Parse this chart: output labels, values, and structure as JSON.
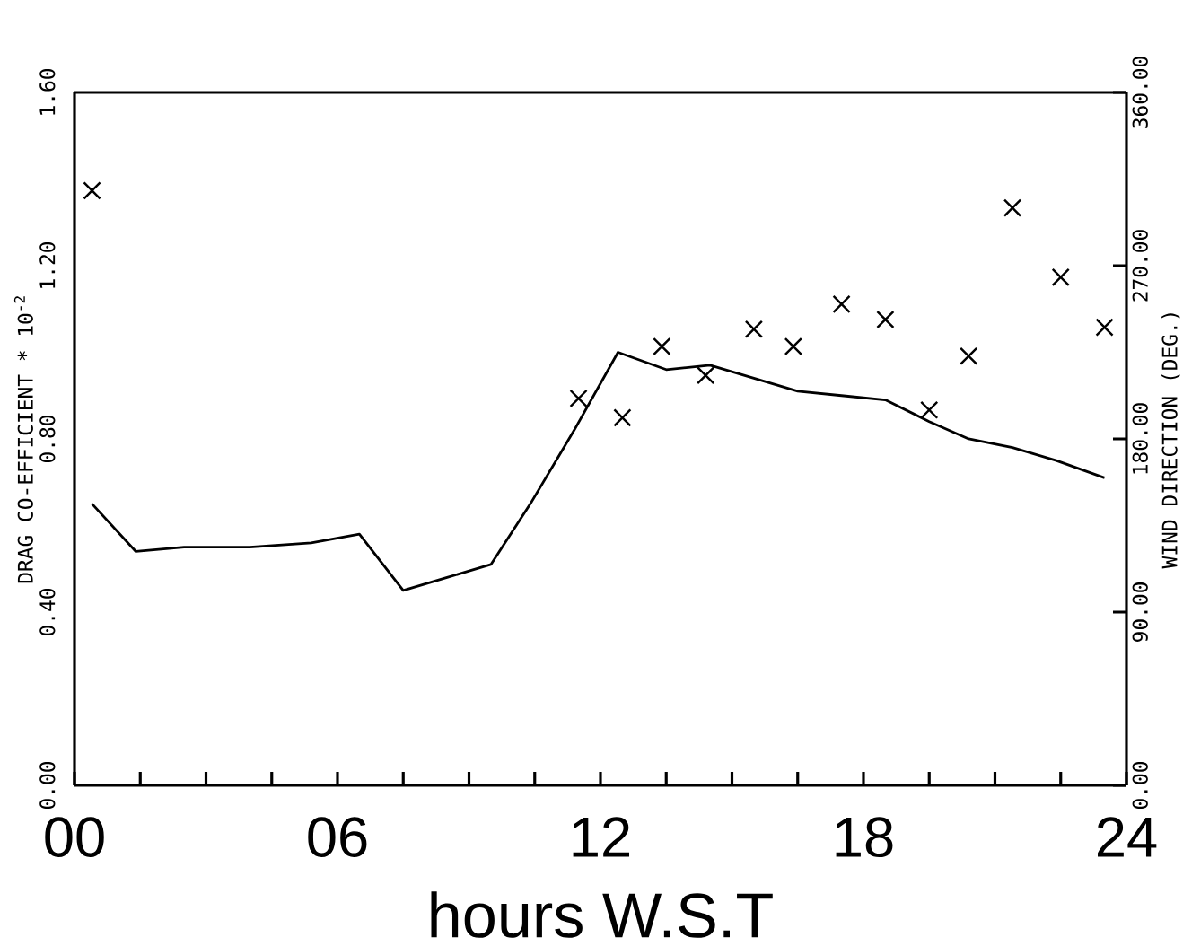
{
  "chart_data": {
    "type": "line",
    "xlabel": "hours W.S.T",
    "ylabel": "DRAG CO-EFFICIENT * 10$^{-2}$",
    "y2label": "WIND DIRECTION (DEG.)",
    "xlim": [
      0,
      24
    ],
    "xticks": [
      {
        "value": 0,
        "label": "00"
      },
      {
        "value": 1.5,
        "label": null
      },
      {
        "value": 3,
        "label": null
      },
      {
        "value": 4.5,
        "label": null
      },
      {
        "value": 6,
        "label": "06"
      },
      {
        "value": 7.5,
        "label": null
      },
      {
        "value": 9,
        "label": null
      },
      {
        "value": 10.5,
        "label": null
      },
      {
        "value": 12,
        "label": "12"
      },
      {
        "value": 13.5,
        "label": null
      },
      {
        "value": 15,
        "label": null
      },
      {
        "value": 16.5,
        "label": null
      },
      {
        "value": 18,
        "label": "18"
      },
      {
        "value": 19.5,
        "label": null
      },
      {
        "value": 21,
        "label": null
      },
      {
        "value": 22.5,
        "label": null
      },
      {
        "value": 24,
        "label": "24"
      }
    ],
    "ylim": [
      0,
      1.6
    ],
    "yticks": [
      {
        "value": 0,
        "label": "0.00"
      },
      {
        "value": 0.4,
        "label": "0.40"
      },
      {
        "value": 0.8,
        "label": "0.80"
      },
      {
        "value": 1.2,
        "label": "1.20"
      },
      {
        "value": 1.6,
        "label": "1.60"
      }
    ],
    "y2lim": [
      0,
      360
    ],
    "y2ticks": [
      {
        "value": 0,
        "label": "0.00"
      },
      {
        "value": 90,
        "label": "90.00"
      },
      {
        "value": 180,
        "label": "180.00"
      },
      {
        "value": 270,
        "label": "270.00"
      },
      {
        "value": 360,
        "label": "360.00"
      }
    ],
    "grid": false,
    "series": [
      {
        "type": "line",
        "color": "#000000",
        "marker": "none",
        "line_style": "solid",
        "x": [
          0.4,
          1.4,
          2.5,
          4.0,
          5.4,
          6.5,
          7.5,
          8.5,
          9.5,
          10.4,
          11.4,
          12.4,
          13.5,
          14.5,
          15.5,
          16.5,
          17.5,
          18.5,
          19.5,
          20.4,
          21.4,
          22.4,
          23.5
        ],
        "values": [
          0.65,
          0.54,
          0.55,
          0.55,
          0.56,
          0.58,
          0.45,
          0.48,
          0.51,
          0.65,
          0.82,
          1.0,
          0.96,
          0.97,
          0.94,
          0.91,
          0.9,
          0.89,
          0.84,
          0.8,
          0.78,
          0.75,
          0.71
        ]
      },
      {
        "type": "scatter",
        "axis": "y2",
        "color": "#000000",
        "marker": "cross",
        "x": [
          0.4,
          11.5,
          12.5,
          13.4,
          14.4,
          15.5,
          16.4,
          17.5,
          18.5,
          19.5,
          20.4,
          21.4,
          22.5,
          23.5
        ],
        "values": [
          309,
          201,
          191,
          228,
          213,
          237,
          228,
          250,
          242,
          195,
          223,
          300,
          264,
          238
        ]
      }
    ]
  }
}
